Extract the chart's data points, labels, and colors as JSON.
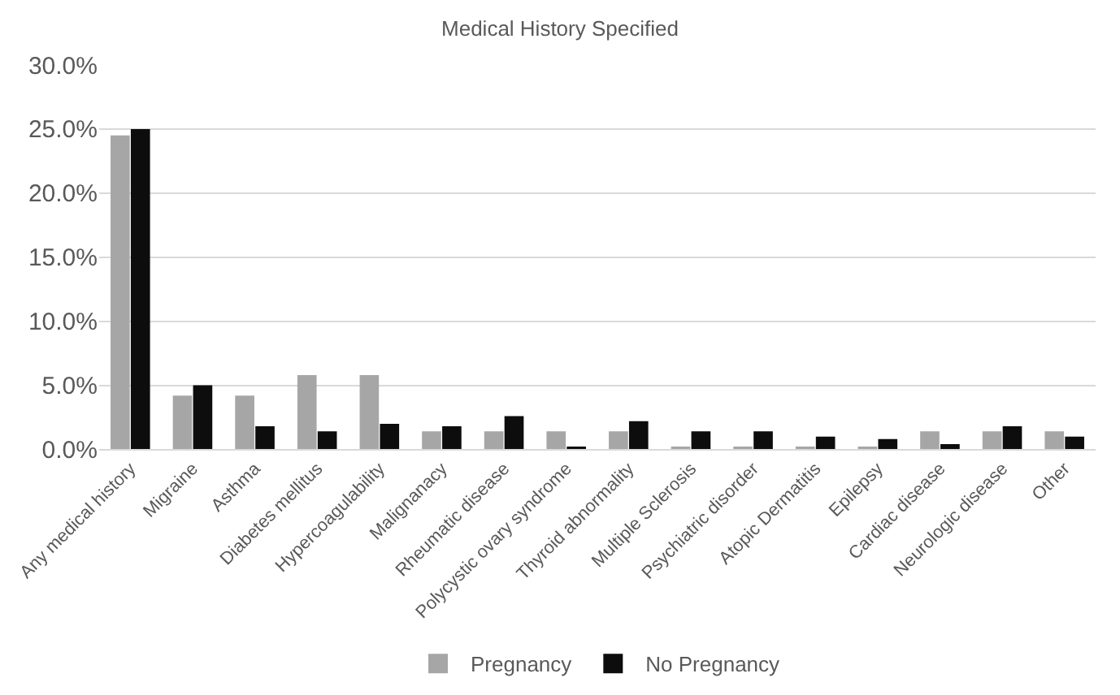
{
  "chart_data": {
    "type": "bar",
    "title": "Medical History Specified",
    "categories": [
      "Any medical history",
      "Migraine",
      "Asthma",
      "Diabetes mellitus",
      "Hypercoagulability",
      "Malignanacy",
      "Rheumatic disease",
      "Polycystic ovary syndrome",
      "Thyroid abnormality",
      "Multiple Sclerosis",
      "Psychiatric disorder",
      "Atopic Dermatitis",
      "Epilepsy",
      "Cardiac disease",
      "Neurologic disease",
      "Other"
    ],
    "series": [
      {
        "name": "Pregnancy",
        "color": "#a6a6a6",
        "values": [
          24.5,
          4.2,
          4.2,
          5.8,
          5.8,
          1.4,
          1.4,
          1.4,
          1.4,
          0.2,
          0.2,
          0.2,
          0.2,
          1.4,
          1.4,
          1.4
        ]
      },
      {
        "name": "No Pregnancy",
        "color": "#0d0d0d",
        "values": [
          25,
          5,
          1.8,
          1.4,
          2,
          1.8,
          2.6,
          0.2,
          2.2,
          1.4,
          1.4,
          1,
          0.8,
          0.4,
          1.8,
          1
        ]
      }
    ],
    "ylim": [
      0,
      30
    ],
    "yticks": [
      {
        "value": 0,
        "label": "0.0%"
      },
      {
        "value": 5,
        "label": "5.0%"
      },
      {
        "value": 10,
        "label": "10.0%"
      },
      {
        "value": 15,
        "label": "15.0%"
      },
      {
        "value": 20,
        "label": "20.0%"
      },
      {
        "value": 25,
        "label": "25.0%"
      },
      {
        "value": 30,
        "label": "30.0%"
      }
    ],
    "grid": "y",
    "legend": "bottom"
  }
}
